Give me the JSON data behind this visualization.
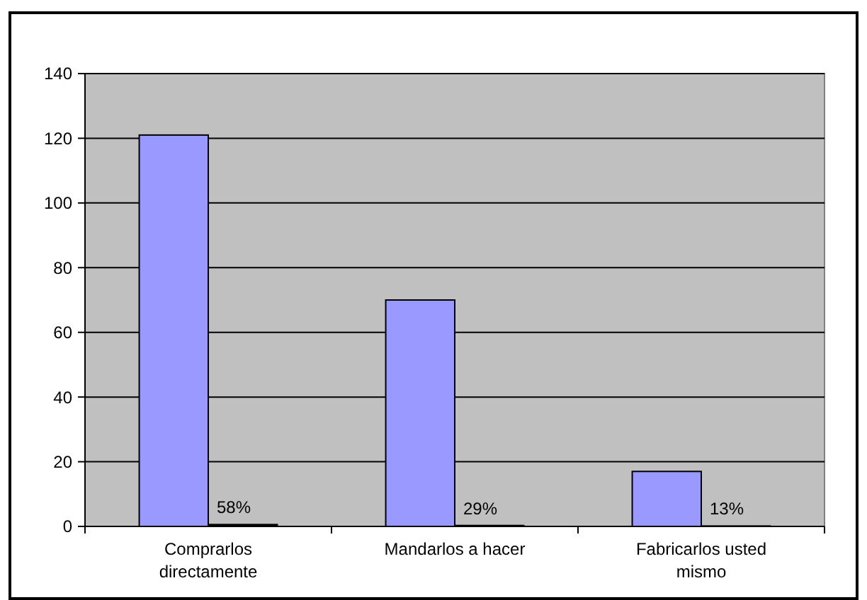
{
  "chart_data": {
    "type": "bar",
    "categories": [
      "Comprarlos directamente",
      "Mandarlos a hacer",
      "Fabricarlos usted mismo"
    ],
    "series": [
      {
        "color": "#9999ff",
        "values": [
          121,
          70,
          17
        ]
      },
      {
        "color": "#000000",
        "values": [
          0.58,
          0.29,
          0.13
        ],
        "value_labels": [
          "58%",
          "29%",
          "13%"
        ]
      }
    ],
    "ylim": [
      0,
      140
    ],
    "yticks": [
      0,
      20,
      40,
      60,
      80,
      100,
      120,
      140
    ],
    "grid": "y"
  }
}
